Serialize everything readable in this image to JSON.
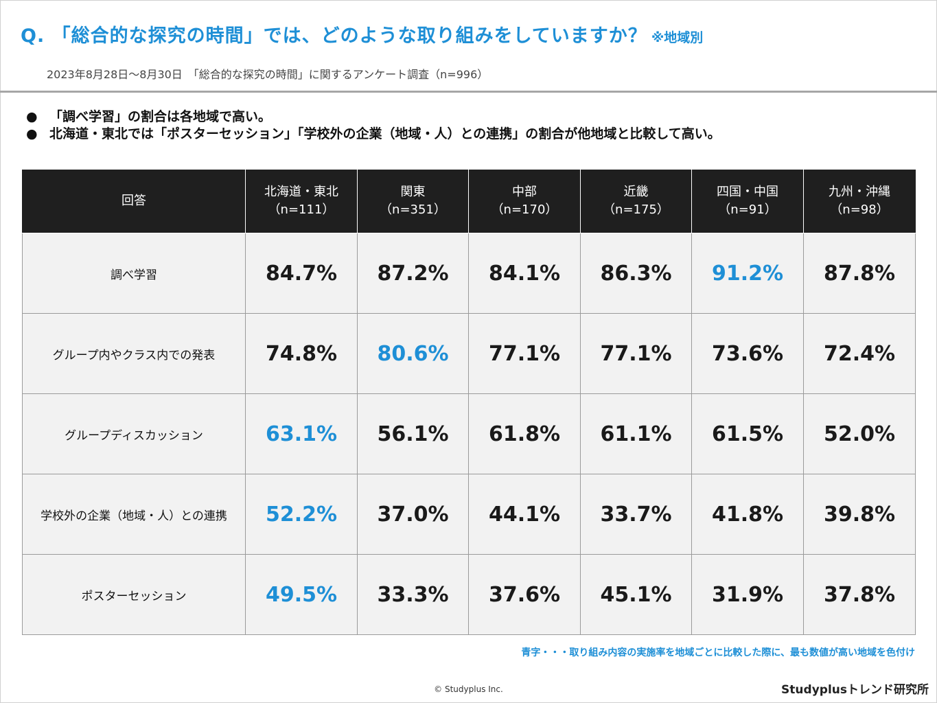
{
  "title": {
    "main": "Q. 「総合的な探究の時間」では、どのような取り組みをしていますか？",
    "note": "※地域別"
  },
  "subtitle": "2023年8月28日〜8月30日　「総合的な探究の時間」に関するアンケート調査（n=996）",
  "bullets": [
    "「調べ学習」の割合は各地域で高い。",
    "北海道・東北では「ポスターセッション」「学校外の企業（地域・人）との連携」の割合が他地域と比較して高い。"
  ],
  "bullet_symbol": "●",
  "table": {
    "header_label": "回答",
    "columns": [
      {
        "name": "北海道・東北",
        "n": "（n=111）"
      },
      {
        "name": "関東",
        "n": "（n=351）"
      },
      {
        "name": "中部",
        "n": "（n=170）"
      },
      {
        "name": "近畿",
        "n": "（n=175）"
      },
      {
        "name": "四国・中国",
        "n": "（n=91）"
      },
      {
        "name": "九州・沖縄",
        "n": "（n=98）"
      }
    ],
    "rows": [
      {
        "label": "調べ学習",
        "values": [
          "84.7%",
          "87.2%",
          "84.1%",
          "86.3%",
          "91.2%",
          "87.8%"
        ],
        "highlight": [
          4
        ]
      },
      {
        "label": "グループ内やクラス内での発表",
        "values": [
          "74.8%",
          "80.6%",
          "77.1%",
          "77.1%",
          "73.6%",
          "72.4%"
        ],
        "highlight": [
          1
        ]
      },
      {
        "label": "グループディスカッション",
        "values": [
          "63.1%",
          "56.1%",
          "61.8%",
          "61.1%",
          "61.5%",
          "52.0%"
        ],
        "highlight": [
          0
        ]
      },
      {
        "label": "学校外の企業（地域・人）との連携",
        "values": [
          "52.2%",
          "37.0%",
          "44.1%",
          "33.7%",
          "41.8%",
          "39.8%"
        ],
        "highlight": [
          0
        ]
      },
      {
        "label": "ポスターセッション",
        "values": [
          "49.5%",
          "33.3%",
          "37.6%",
          "45.1%",
          "31.9%",
          "37.8%"
        ],
        "highlight": [
          0
        ]
      }
    ]
  },
  "colors": {
    "accent": "#1e8fd6",
    "header_bg": "#1f1f1f",
    "cell_bg": "#f2f2f2"
  },
  "footnote": "青字・・・取り組み内容の実施率を地域ごとに比較した際に、最も数値が高い地域を色付け",
  "copyright": "© Studyplus Inc.",
  "brand": "Studyplusトレンド研究所"
}
